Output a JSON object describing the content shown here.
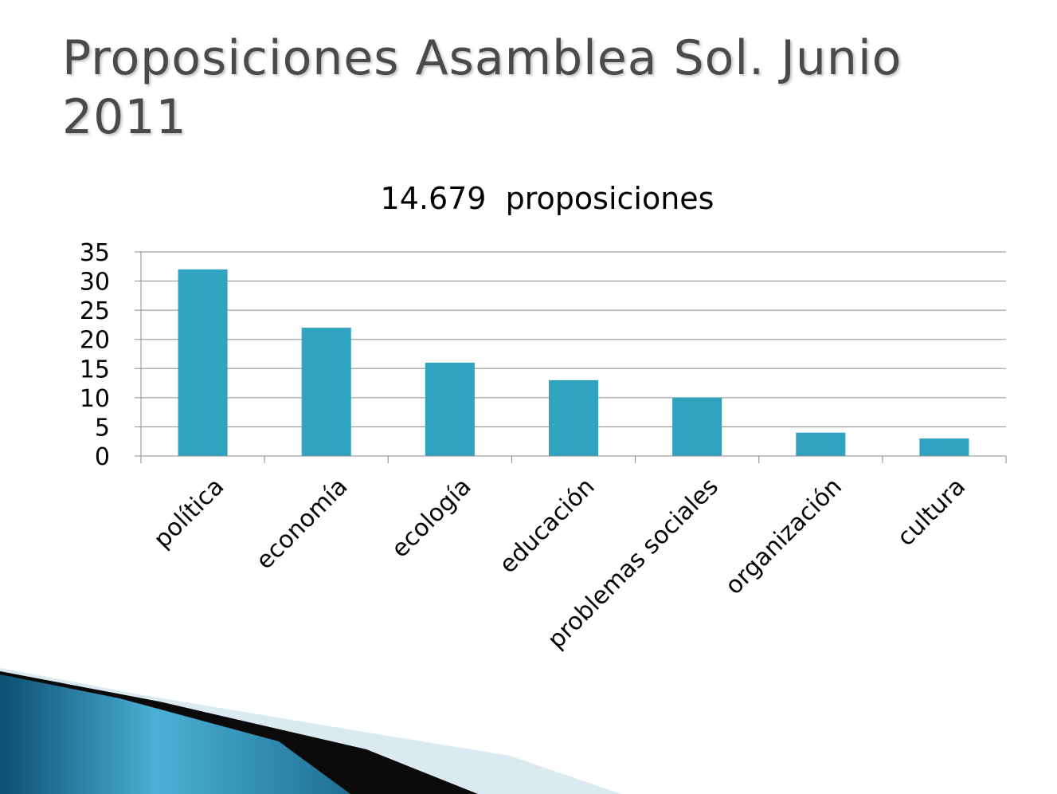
{
  "slide": {
    "title": "Proposiciones Asamblea Sol. Junio 2011"
  },
  "colors": {
    "bar": "#2fa3bf",
    "grid": "#888888",
    "title_text": "#4a4a4a",
    "decor_dark": "#0b4f72",
    "decor_light": "#4cb0d6",
    "decor_pale": "#dbe9f1"
  },
  "chart_data": {
    "type": "bar",
    "title": "14.679  proposiciones",
    "xlabel": "",
    "ylabel": "",
    "categories": [
      "política",
      "economía",
      "ecología",
      "educación",
      "problemas sociales",
      "organización",
      "cultura"
    ],
    "values": [
      32,
      22,
      16,
      13,
      10,
      4,
      3
    ],
    "ylim": [
      0,
      35
    ],
    "yticks": [
      0,
      5,
      10,
      15,
      20,
      25,
      30,
      35
    ],
    "grid": true,
    "legend": "none"
  }
}
